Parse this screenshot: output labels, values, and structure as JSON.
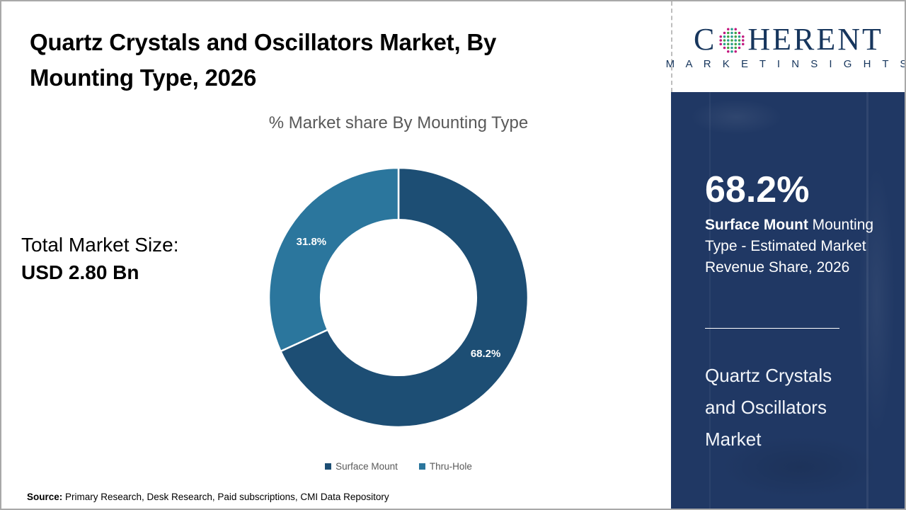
{
  "title": {
    "line1": "Quartz Crystals and Oscillators Market, By",
    "line2": "Mounting Type, 2026",
    "full": "Quartz Crystals and Oscillators Market, By Mounting Type, 2026"
  },
  "logo": {
    "brand_prefix": "C",
    "brand_suffix": "HERENT",
    "tagline": "M A R K E T   I N S I G H T S",
    "globe_icon": "dotted-globe-icon",
    "brand_color": "#17365d"
  },
  "left_stat": {
    "label": "Total Market Size:",
    "value": "USD 2.80 Bn"
  },
  "chart_data": {
    "type": "pie",
    "donut": true,
    "title": "% Market share By Mounting Type",
    "categories": [
      "Surface Mount",
      "Thru-Hole"
    ],
    "values": [
      68.2,
      31.8
    ],
    "data_labels": [
      "68.2%",
      "31.8%"
    ],
    "colors": [
      "#1d4e74",
      "#2b769d"
    ],
    "start_angle_deg": 0,
    "direction": "clockwise",
    "inner_radius_ratio": 0.6,
    "legend_position": "bottom",
    "label_text_color": "#ffffff"
  },
  "panel": {
    "stat_value": "68.2%",
    "desc_bold": "Surface Mount",
    "desc_rest": " Mounting Type - Estimated Market Revenue Share, 2026",
    "market_name": "Quartz Crystals and Oscillators Market",
    "bg_color": "#203864"
  },
  "source": {
    "label": "Source:",
    "text": " Primary Research, Desk Research, Paid subscriptions, CMI Data Repository"
  }
}
